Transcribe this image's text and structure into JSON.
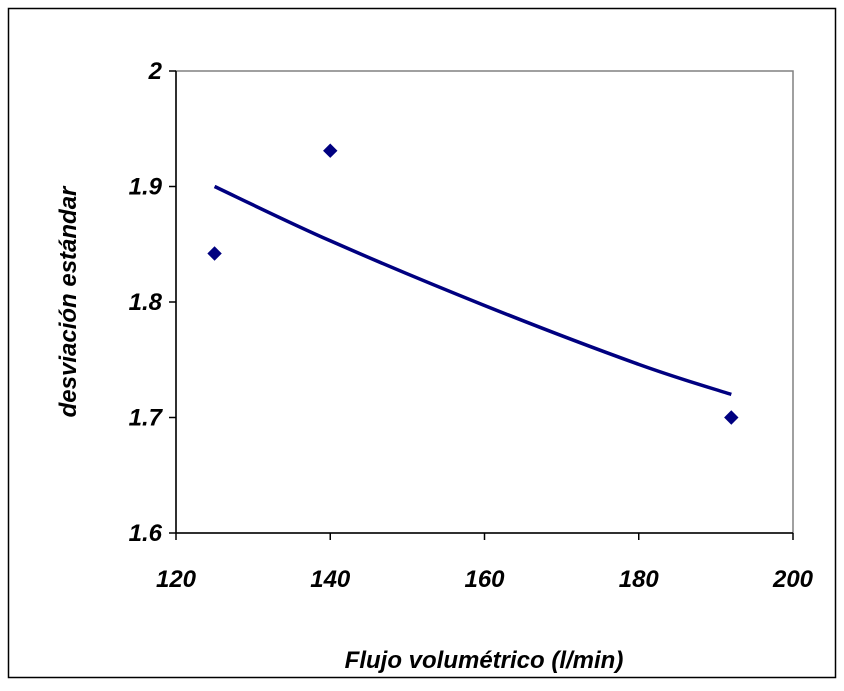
{
  "chart_data": {
    "type": "scatter",
    "title": "",
    "xlabel": "Flujo volumétrico (l/min)",
    "ylabel": "desviación estándar",
    "xlim": [
      120,
      200
    ],
    "ylim": [
      1.6,
      2.0
    ],
    "xticks": [
      "120",
      "140",
      "160",
      "180",
      "200"
    ],
    "yticks": [
      "1.6",
      "1.7",
      "1.8",
      "1.9",
      "2"
    ],
    "grid": false,
    "legend": "none",
    "series": [
      {
        "kind": "scatter",
        "marker": "diamond",
        "color": "#000080",
        "x": [
          125,
          140,
          192
        ],
        "y": [
          1.842,
          1.931,
          1.7
        ]
      },
      {
        "kind": "trendline",
        "color": "#000080",
        "x": [
          125,
          140,
          160,
          180,
          192
        ],
        "y": [
          1.9,
          1.853,
          1.797,
          1.746,
          1.72
        ]
      }
    ]
  }
}
